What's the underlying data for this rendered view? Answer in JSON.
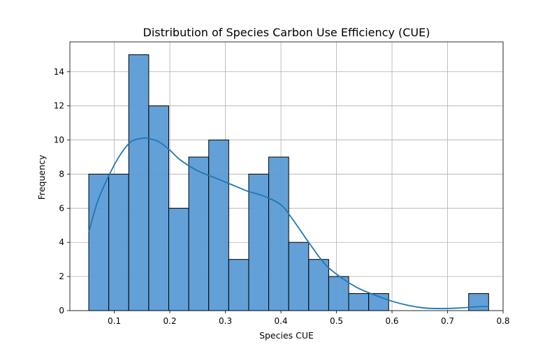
{
  "chart_data": {
    "type": "bar",
    "subtype": "histogram-with-kde",
    "title": "Distribution of Species Carbon Use Efficiency (CUE)",
    "xlabel": "Species CUE",
    "ylabel": "Frequency",
    "xlim": [
      0.02,
      0.8
    ],
    "ylim": [
      0,
      15.75
    ],
    "xticks": [
      0.1,
      0.2,
      0.3,
      0.4,
      0.5,
      0.6,
      0.7,
      0.8
    ],
    "xtick_labels": [
      "0.1",
      "0.2",
      "0.3",
      "0.4",
      "0.5",
      "0.6",
      "0.7",
      "0.8"
    ],
    "yticks": [
      0,
      2,
      4,
      6,
      8,
      10,
      12,
      14
    ],
    "ytick_labels": [
      "0",
      "2",
      "4",
      "6",
      "8",
      "10",
      "12",
      "14"
    ],
    "grid": true,
    "bar_color": "#5b9bd5",
    "line_color": "#1f77b4",
    "bins": [
      {
        "x0": 0.054,
        "x1": 0.09,
        "count": 8
      },
      {
        "x0": 0.09,
        "x1": 0.126,
        "count": 8
      },
      {
        "x0": 0.126,
        "x1": 0.162,
        "count": 15
      },
      {
        "x0": 0.162,
        "x1": 0.198,
        "count": 12
      },
      {
        "x0": 0.198,
        "x1": 0.234,
        "count": 6
      },
      {
        "x0": 0.234,
        "x1": 0.27,
        "count": 9
      },
      {
        "x0": 0.27,
        "x1": 0.306,
        "count": 10
      },
      {
        "x0": 0.306,
        "x1": 0.342,
        "count": 3
      },
      {
        "x0": 0.342,
        "x1": 0.378,
        "count": 8
      },
      {
        "x0": 0.378,
        "x1": 0.414,
        "count": 9
      },
      {
        "x0": 0.414,
        "x1": 0.45,
        "count": 4
      },
      {
        "x0": 0.45,
        "x1": 0.486,
        "count": 3
      },
      {
        "x0": 0.486,
        "x1": 0.522,
        "count": 2
      },
      {
        "x0": 0.522,
        "x1": 0.558,
        "count": 1
      },
      {
        "x0": 0.558,
        "x1": 0.594,
        "count": 1
      },
      {
        "x0": 0.738,
        "x1": 0.774,
        "count": 1
      }
    ],
    "kde": {
      "x": [
        0.054,
        0.07,
        0.09,
        0.11,
        0.13,
        0.15,
        0.16,
        0.18,
        0.2,
        0.22,
        0.25,
        0.28,
        0.31,
        0.34,
        0.37,
        0.4,
        0.42,
        0.45,
        0.48,
        0.51,
        0.54,
        0.57,
        0.6,
        0.63,
        0.66,
        0.69,
        0.72,
        0.75,
        0.774
      ],
      "y": [
        4.6,
        6.4,
        7.9,
        9.1,
        9.9,
        10.1,
        10.1,
        9.9,
        9.4,
        8.8,
        8.2,
        7.8,
        7.4,
        7.0,
        6.7,
        6.2,
        5.4,
        4.0,
        2.7,
        1.9,
        1.3,
        0.9,
        0.55,
        0.3,
        0.15,
        0.12,
        0.15,
        0.22,
        0.25
      ]
    }
  }
}
